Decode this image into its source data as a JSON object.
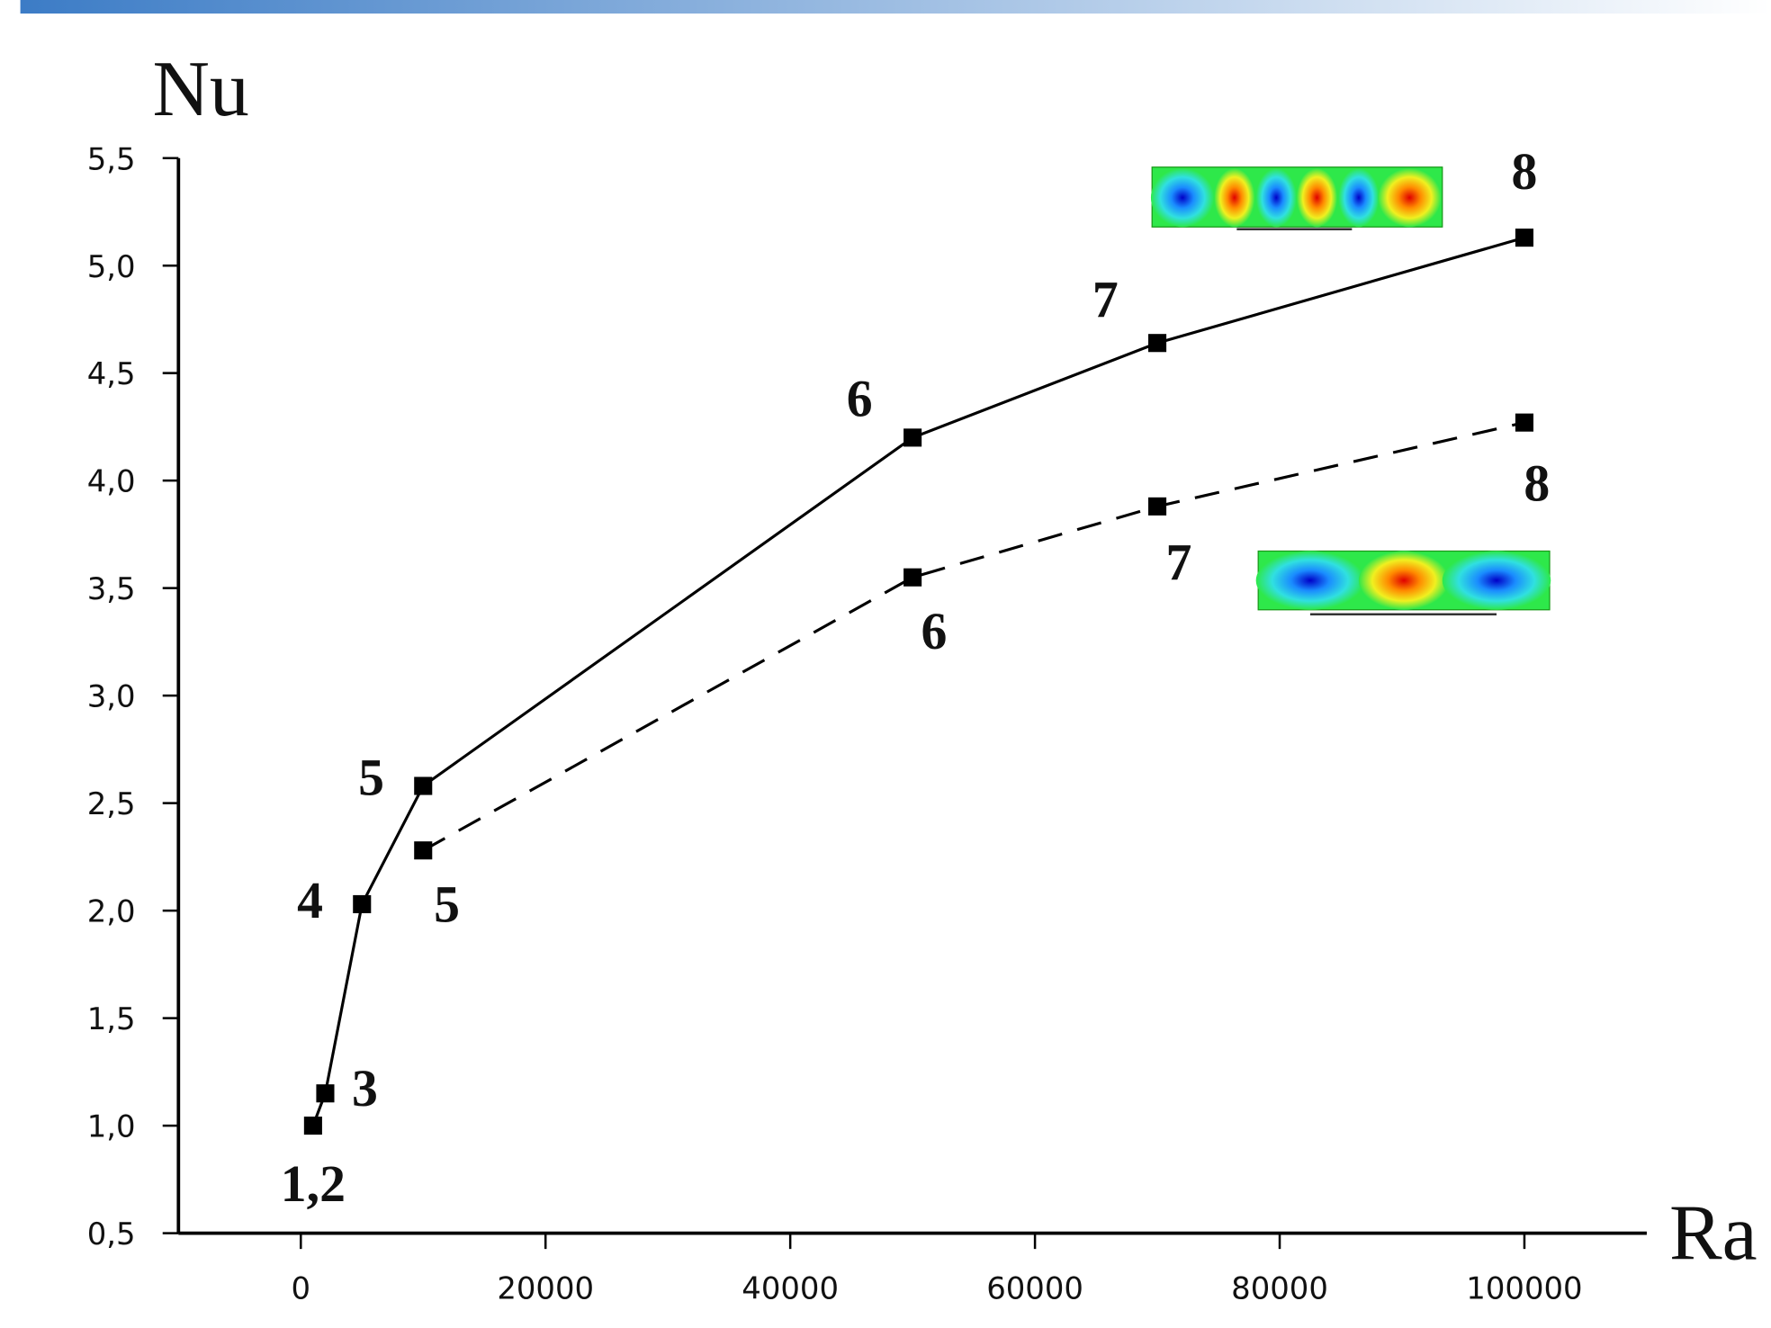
{
  "chart_data": {
    "type": "line",
    "x_label": "Ra",
    "y_label": "Nu",
    "xlim": [
      -10000,
      110000
    ],
    "xticks": [
      0,
      20000,
      40000,
      60000,
      80000,
      100000
    ],
    "ylim": [
      0.5,
      5.5
    ],
    "yticks": [
      {
        "value": 0.5,
        "label": "0,5"
      },
      {
        "value": 1.0,
        "label": "1,0"
      },
      {
        "value": 1.5,
        "label": "1,5"
      },
      {
        "value": 2.0,
        "label": "2,0"
      },
      {
        "value": 2.5,
        "label": "2,5"
      },
      {
        "value": 3.0,
        "label": "3,0"
      },
      {
        "value": 3.5,
        "label": "3,5"
      },
      {
        "value": 4.0,
        "label": "4,0"
      },
      {
        "value": 4.5,
        "label": "4,5"
      },
      {
        "value": 5.0,
        "label": "5,0"
      },
      {
        "value": 5.5,
        "label": "5,5"
      }
    ],
    "series": [
      {
        "color": "#000000",
        "dashed": false,
        "x": [
          1000,
          2000,
          5000,
          10000,
          50000,
          70000,
          100000
        ],
        "values": [
          1.0,
          1.15,
          2.03,
          2.58,
          4.2,
          4.64,
          5.13
        ],
        "point_labels": [
          "1,2",
          "3",
          "4",
          "5",
          "6",
          "7",
          "8"
        ]
      },
      {
        "color": "#000000",
        "dashed": true,
        "x": [
          10000,
          50000,
          70000,
          100000
        ],
        "values": [
          2.28,
          3.55,
          3.88,
          4.27
        ],
        "point_labels": [
          "5",
          "6",
          "7",
          "8"
        ]
      }
    ]
  }
}
